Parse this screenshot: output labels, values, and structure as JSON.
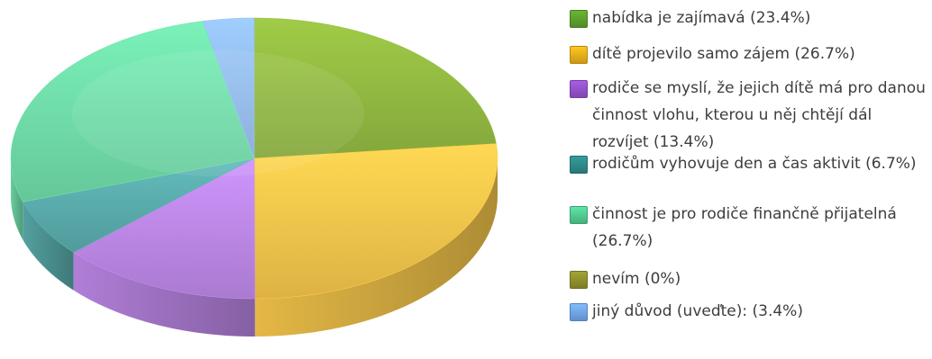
{
  "chart_data": {
    "type": "pie",
    "title": "",
    "slices": [
      {
        "label": "nabídka je zajímavá (23.4%)",
        "value": 23.4,
        "color": "#8fb640",
        "legend_color": "#5a9a2a"
      },
      {
        "label": "dítě projevilo samo zájem (26.7%)",
        "value": 26.7,
        "color": "#f0c24a",
        "legend_color": "#e2a919"
      },
      {
        "label": "rodiče se myslí, že jejich dítě má pro danou činnost vlohu, kterou u něj chtějí dál rozvíjet (13.4%)",
        "value": 13.4,
        "color": "#b985e2",
        "legend_color": "#8f4fc4"
      },
      {
        "label": "rodičům vyhovuje den a čas aktivit (6.7%)",
        "value": 6.7,
        "color": "#58a8a8",
        "legend_color": "#2c8585"
      },
      {
        "label": "činnost je pro rodiče finančně přijatelná (26.7%)",
        "value": 26.7,
        "color": "#6ed8a6",
        "legend_color": "#4fc48c"
      },
      {
        "label": "nevím (0%)",
        "value": 0,
        "color": "#8b8b2b",
        "legend_color": "#8b8b2b"
      },
      {
        "label": "jiný důvod (uveďte): (3.4%)",
        "value": 3.4,
        "color": "#8fb8ec",
        "legend_color": "#6d9fe3"
      }
    ],
    "legend_placement": "right",
    "style": "3d"
  }
}
